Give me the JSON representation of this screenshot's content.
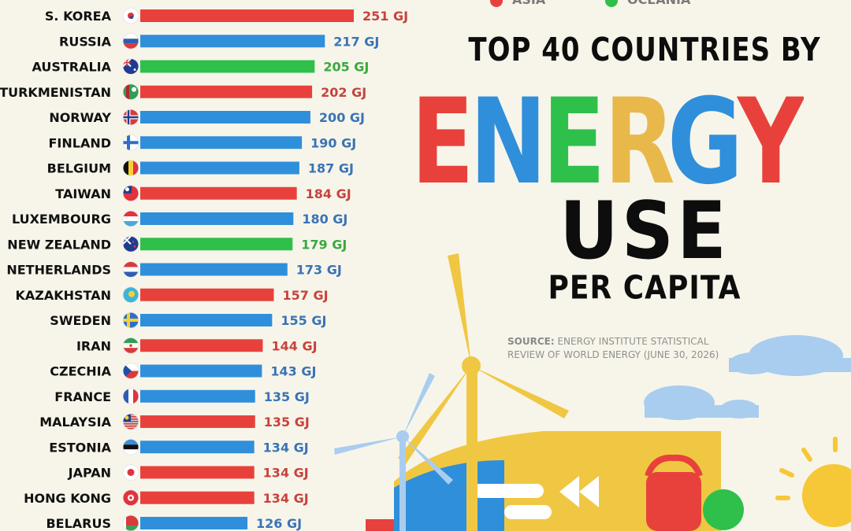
{
  "title": {
    "line1": "TOP 40 COUNTRIES BY",
    "line2": "ENERGY",
    "line3": "USE",
    "line4": "PER CAPITA"
  },
  "source": {
    "label": "SOURCE:",
    "text": "ENERGY INSTITUTE STATISTICAL REVIEW OF WORLD ENERGY (JUNE 30, 2026)"
  },
  "legend": [
    {
      "label": "ASIA",
      "color": "#e8413c"
    },
    {
      "label": "OCEANIA",
      "color": "#2ec04a"
    }
  ],
  "colors": {
    "asia": "#e8413c",
    "europe": "#2f8fdb",
    "oceania": "#2ec04a",
    "value_asia": "#c8423d",
    "value_europe": "#3a73b5",
    "value_oceania": "#3aa83f",
    "energy_letters": [
      "#e8413c",
      "#2f8fdb",
      "#2ec04a",
      "#e8b84a",
      "#2f8fdb",
      "#e8413c"
    ]
  },
  "chart_data": {
    "type": "bar",
    "orientation": "horizontal",
    "unit": "GJ",
    "categories": [
      "S. KOREA",
      "RUSSIA",
      "AUSTRALIA",
      "TURKMENISTAN",
      "NORWAY",
      "FINLAND",
      "BELGIUM",
      "TAIWAN",
      "LUXEMBOURG",
      "NEW ZEALAND",
      "NETHERLANDS",
      "KAZAKHSTAN",
      "SWEDEN",
      "IRAN",
      "CZECHIA",
      "FRANCE",
      "MALAYSIA",
      "ESTONIA",
      "JAPAN",
      "HONG KONG",
      "BELARUS"
    ],
    "values": [
      251,
      217,
      205,
      202,
      200,
      190,
      187,
      184,
      180,
      179,
      173,
      157,
      155,
      144,
      143,
      135,
      135,
      134,
      134,
      134,
      126
    ],
    "region": [
      "asia",
      "europe",
      "oceania",
      "asia",
      "europe",
      "europe",
      "europe",
      "asia",
      "europe",
      "oceania",
      "europe",
      "asia",
      "europe",
      "asia",
      "europe",
      "europe",
      "asia",
      "europe",
      "asia",
      "asia",
      "europe"
    ],
    "value_labels": [
      "251 GJ",
      "217 GJ",
      "205 GJ",
      "202 GJ",
      "200 GJ",
      "190 GJ",
      "187 GJ",
      "184 GJ",
      "180 GJ",
      "179 GJ",
      "173 GJ",
      "157 GJ",
      "155 GJ",
      "144 GJ",
      "143 GJ",
      "135 GJ",
      "135 GJ",
      "134 GJ",
      "134 GJ",
      "134 GJ",
      "126 GJ"
    ],
    "flags": [
      "flag-south-korea",
      "flag-russia",
      "flag-australia",
      "flag-turkmenistan",
      "flag-norway",
      "flag-finland",
      "flag-belgium",
      "flag-taiwan",
      "flag-luxembourg",
      "flag-new-zealand",
      "flag-netherlands",
      "flag-kazakhstan",
      "flag-sweden",
      "flag-iran",
      "flag-czechia",
      "flag-france",
      "flag-malaysia",
      "flag-estonia",
      "flag-japan",
      "flag-hong-kong",
      "flag-belarus"
    ]
  }
}
